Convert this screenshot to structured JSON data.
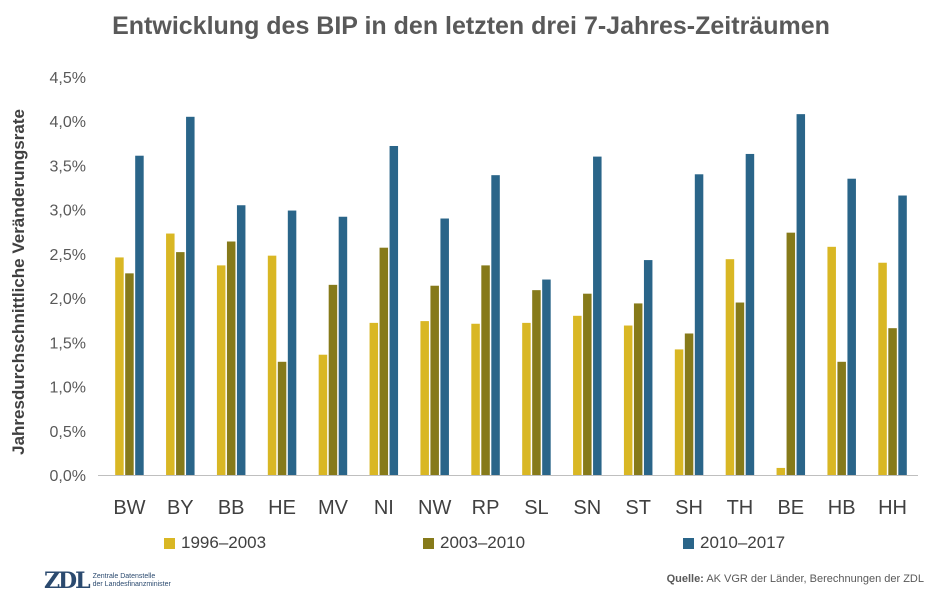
{
  "chart_data": {
    "type": "bar",
    "title": "Entwicklung des BIP in den letzten drei 7-Jahres-Zeiträumen",
    "ylabel": "Jahresdurchschnittliche Veränderungsrate",
    "xlabel": "",
    "ylim": [
      0,
      4.5
    ],
    "yticks": [
      "0,0%",
      "0,5%",
      "1,0%",
      "1,5%",
      "2,0%",
      "2,5%",
      "3,0%",
      "3,5%",
      "4,0%",
      "4,5%"
    ],
    "categories": [
      "BW",
      "BY",
      "BB",
      "HE",
      "MV",
      "NI",
      "NW",
      "RP",
      "SL",
      "SN",
      "ST",
      "SH",
      "TH",
      "BE",
      "HB",
      "HH"
    ],
    "series": [
      {
        "name": "1996–2003",
        "color": "#d9b724",
        "values": [
          2.46,
          2.73,
          2.37,
          2.48,
          1.36,
          1.72,
          1.74,
          1.71,
          1.72,
          1.8,
          1.69,
          1.42,
          2.44,
          0.08,
          2.58,
          2.4
        ]
      },
      {
        "name": "2003–2010",
        "color": "#867a1a",
        "values": [
          2.28,
          2.52,
          2.64,
          1.28,
          2.15,
          2.57,
          2.14,
          2.37,
          2.09,
          2.05,
          1.94,
          1.6,
          1.95,
          2.74,
          1.28,
          1.66
        ]
      },
      {
        "name": "2010–2017",
        "color": "#2a6589",
        "values": [
          3.61,
          4.05,
          3.05,
          2.99,
          2.92,
          3.72,
          2.9,
          3.39,
          2.21,
          3.6,
          2.43,
          3.4,
          3.63,
          4.08,
          3.35,
          3.16
        ]
      }
    ],
    "grid": false,
    "legend": "bottom"
  },
  "footer": {
    "logo_mark": "ZDL",
    "logo_line1": "Zentrale Datenstelle",
    "logo_line2": "der Landesfinanzminister",
    "source_label": "Quelle:",
    "source_text": "AK VGR der Länder, Berechnungen der ZDL"
  }
}
